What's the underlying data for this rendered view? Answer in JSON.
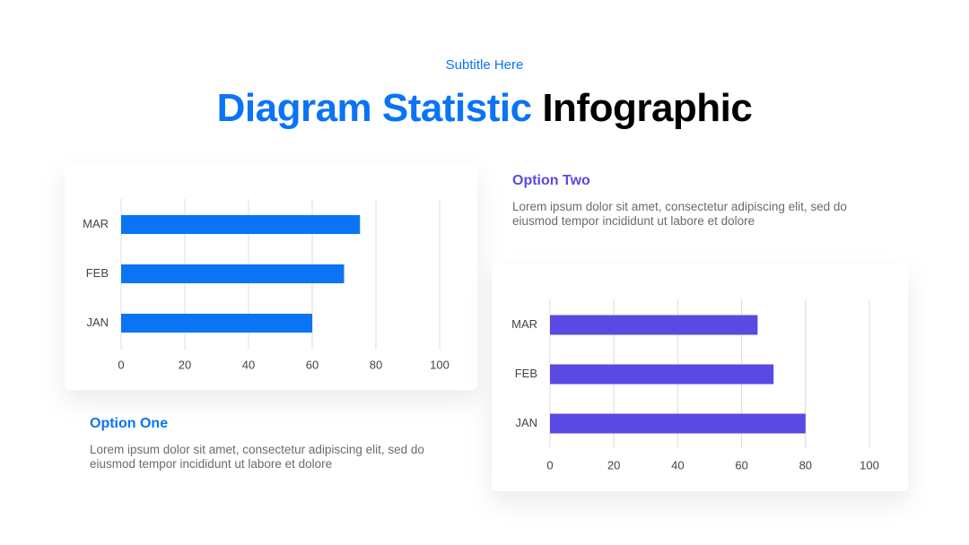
{
  "header": {
    "subtitle": "Subtitle Here",
    "title_accent": "Diagram Statistic",
    "title_rest": "Infographic"
  },
  "chart_data": [
    {
      "type": "bar",
      "orientation": "horizontal",
      "title": "Option One",
      "description": "Lorem ipsum dolor sit amet, consectetur adipiscing elit, sed do eiusmod tempor incididunt ut labore et dolore",
      "categories": [
        "JAN",
        "FEB",
        "MAR"
      ],
      "values": [
        60,
        70,
        75
      ],
      "color": "#0a74f5",
      "xlim": [
        0,
        100
      ],
      "xticks": [
        0,
        20,
        40,
        60,
        80,
        100
      ],
      "grid": true
    },
    {
      "type": "bar",
      "orientation": "horizontal",
      "title": "Option Two",
      "description": "Lorem ipsum dolor sit amet, consectetur adipiscing elit, sed do eiusmod tempor incididunt ut labore et dolore",
      "categories": [
        "JAN",
        "FEB",
        "MAR"
      ],
      "values": [
        80,
        70,
        65
      ],
      "color": "#5a4ae3",
      "xlim": [
        0,
        100
      ],
      "xticks": [
        0,
        20,
        40,
        60,
        80,
        100
      ],
      "grid": true
    }
  ]
}
